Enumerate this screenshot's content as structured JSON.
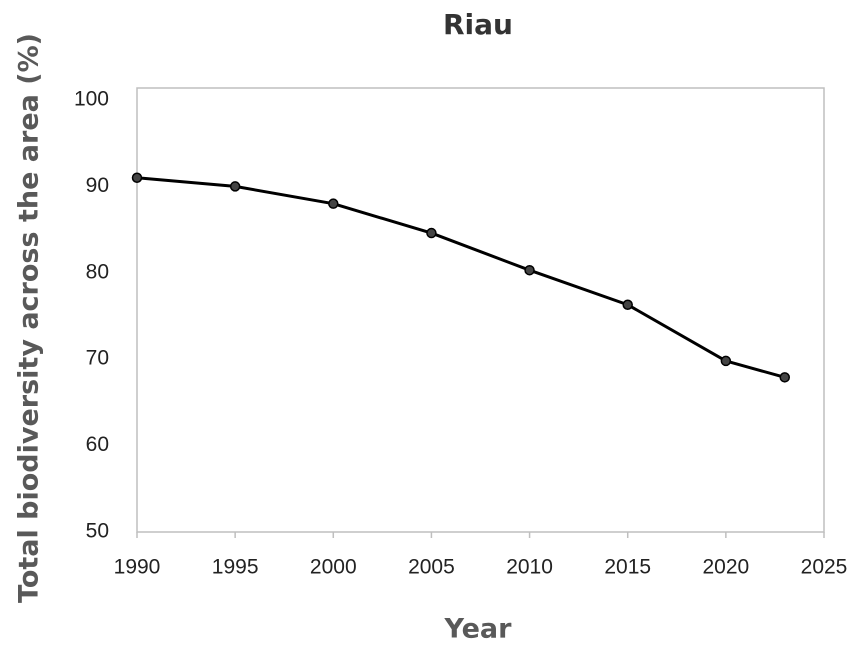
{
  "chart_data": {
    "type": "line",
    "title": "Riau",
    "x_label": "Year",
    "y_label": "Total biodiversity across the area (%)",
    "x": [
      1990,
      1995,
      2000,
      2005,
      2010,
      2015,
      2020,
      2023
    ],
    "series": [
      {
        "name": "Riau",
        "color": "#000000",
        "values": [
          91.0,
          90.0,
          88.0,
          84.6,
          80.3,
          76.3,
          69.8,
          67.9
        ]
      }
    ],
    "xlim": [
      1990,
      2025
    ],
    "xticks": [
      1990,
      1995,
      2000,
      2005,
      2010,
      2015,
      2020,
      2025
    ],
    "ylim": [
      50,
      100
    ],
    "yticks": [
      50,
      60,
      70,
      80,
      90,
      100
    ],
    "grid": false
  }
}
